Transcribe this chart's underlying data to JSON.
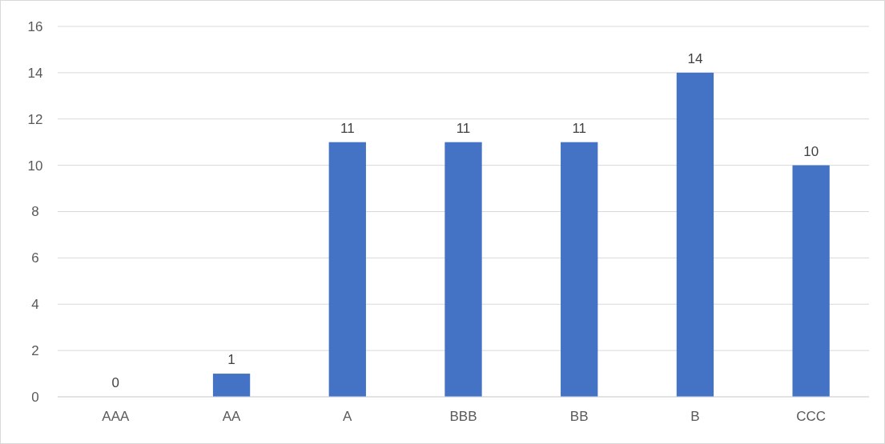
{
  "chart_data": {
    "type": "bar",
    "categories": [
      "AAA",
      "AA",
      "A",
      "BBB",
      "BB",
      "B",
      "CCC"
    ],
    "values": [
      0,
      1,
      11,
      11,
      11,
      14,
      10
    ],
    "color": "#4472c4",
    "ylim": [
      0,
      16
    ],
    "yticks": [
      0,
      2,
      4,
      6,
      8,
      10,
      12,
      14,
      16
    ],
    "grid": "y",
    "data_labels": true
  }
}
